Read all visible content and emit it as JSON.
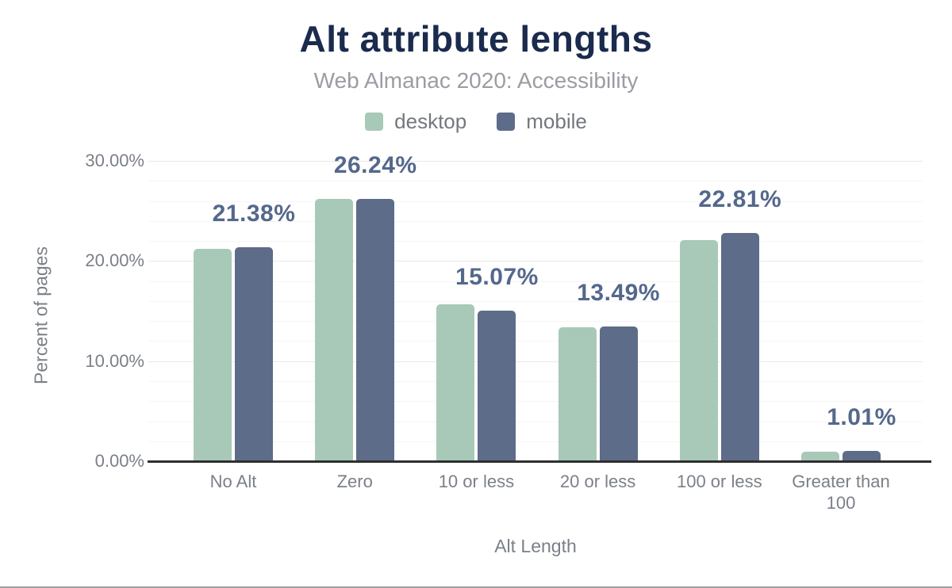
{
  "chart_data": {
    "type": "bar",
    "title": "Alt attribute lengths",
    "subtitle": "Web Almanac 2020: Accessibility",
    "xlabel": "Alt Length",
    "ylabel": "Percent of pages",
    "categories": [
      "No Alt",
      "Zero",
      "10 or less",
      "20 or less",
      "100 or less",
      "Greater than 100"
    ],
    "series": [
      {
        "name": "desktop",
        "color": "#a8c9b8",
        "values": [
          21.22,
          26.2,
          15.7,
          13.41,
          22.12,
          0.95
        ]
      },
      {
        "name": "mobile",
        "color": "#5d6c88",
        "values": [
          21.38,
          26.24,
          15.07,
          13.49,
          22.81,
          1.01
        ]
      }
    ],
    "data_labels": [
      "21.38%",
      "26.24%",
      "15.07%",
      "13.49%",
      "22.81%",
      "1.01%"
    ],
    "data_labels_series": "mobile",
    "y_ticks": [
      {
        "value": 0,
        "label": "0.00%"
      },
      {
        "value": 10,
        "label": "10.00%"
      },
      {
        "value": 20,
        "label": "20.00%"
      },
      {
        "value": 30,
        "label": "30.00%"
      }
    ],
    "ylim": [
      0,
      30
    ],
    "grid": {
      "major_step": 10,
      "minor_step": 2,
      "grid_on": true
    },
    "legend_position": "top",
    "colors": {
      "title": "#1a2b4d",
      "subtitle": "#9a9da2",
      "axis_text": "#7b8088",
      "data_label": "#54688c",
      "axis_line": "#2f2f2f"
    }
  }
}
